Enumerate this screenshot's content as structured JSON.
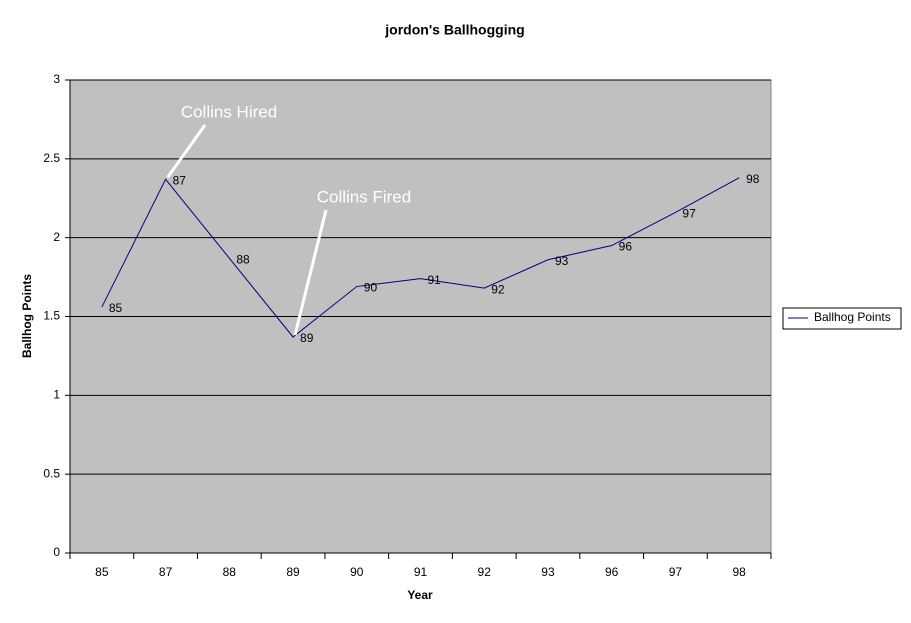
{
  "chart_data": {
    "type": "line",
    "title": "jordon's Ballhogging",
    "x_label": "Year",
    "y_label": "Ballhog Points",
    "categories": [
      "85",
      "87",
      "88",
      "89",
      "90",
      "91",
      "92",
      "93",
      "96",
      "97",
      "98"
    ],
    "series": [
      {
        "name": "Ballhog Points",
        "color": "#000080",
        "values": [
          1.56,
          2.37,
          1.87,
          1.37,
          1.69,
          1.74,
          1.68,
          1.86,
          1.95,
          2.16,
          2.38
        ]
      }
    ],
    "ylim": [
      0,
      3
    ],
    "yticks": [
      0,
      0.5,
      1,
      1.5,
      2,
      2.5,
      3
    ],
    "grid": true,
    "legend": "right",
    "background": "#c0c0c0",
    "annotations": [
      "Collins Hired",
      "Collins Fired"
    ]
  }
}
